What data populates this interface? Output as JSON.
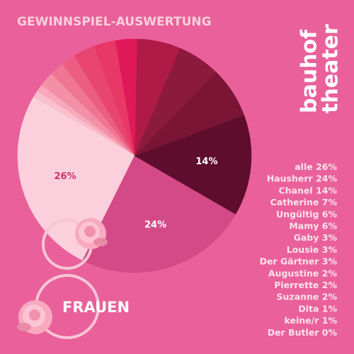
{
  "chart_data": {
    "type": "pie",
    "title": "GEWINNSPIEL-AUSWERTUNG",
    "logo": [
      "bauhof",
      "theater"
    ],
    "caption": "FRAUEN",
    "categories": [
      "alle",
      "Hausherr",
      "Chanel",
      "Catherine",
      "Ungültig",
      "Mamy",
      "Gaby",
      "Lousie",
      "Der Gärtner",
      "Augustine",
      "Pierrette",
      "Suzanne",
      "Dita",
      "keine/r",
      "Der Butler"
    ],
    "values": [
      26,
      24,
      14,
      7,
      6,
      6,
      3,
      3,
      3,
      2,
      2,
      2,
      1,
      1,
      0
    ],
    "value_labels": [
      "26%",
      "24%",
      "14%",
      "7%",
      "6%",
      "6%",
      "3%",
      "3%",
      "3%",
      "2%",
      "2%",
      "2%",
      "1%",
      "1%",
      "0%"
    ],
    "slice_labels_shown": 3,
    "colors": [
      "#fbd0dc",
      "#d34a87",
      "#5e0e2c",
      "#7a1536",
      "#8c1a3e",
      "#b01a47",
      "#e0195a",
      "#e83868",
      "#e84572",
      "#ec5d82",
      "#f07592",
      "#f38fa6",
      "#f7a8ba",
      "#fabfcd",
      "#fcd5de"
    ]
  }
}
